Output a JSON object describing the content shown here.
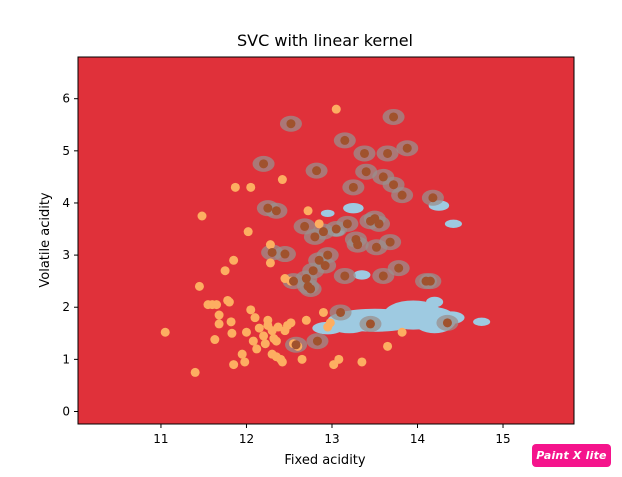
{
  "chart_data": {
    "type": "scatter",
    "title": "SVC with linear kernel",
    "xlabel": "Fixed acidity",
    "ylabel": "Volatile acidity",
    "xlim": [
      10.03,
      15.83
    ],
    "ylim": [
      -0.24,
      6.8
    ],
    "xticks": [
      "11",
      "12",
      "13",
      "14",
      "15"
    ],
    "yticks": [
      "0",
      "1",
      "2",
      "3",
      "4",
      "5",
      "6"
    ],
    "grid": false,
    "colors": {
      "background_region": "#e0313a",
      "light_blue_region": "#9ecae1",
      "brown_points": "#a0522d",
      "orange_points": "#fdae61"
    },
    "series": [
      {
        "color": "#fdae61",
        "points": [
          [
            11.05,
            1.52
          ],
          [
            11.4,
            0.75
          ],
          [
            11.45,
            2.4
          ],
          [
            11.48,
            3.75
          ],
          [
            11.55,
            2.05
          ],
          [
            11.6,
            2.05
          ],
          [
            11.63,
            1.38
          ],
          [
            11.65,
            2.05
          ],
          [
            11.68,
            1.85
          ],
          [
            11.68,
            1.68
          ],
          [
            11.75,
            2.7
          ],
          [
            11.78,
            2.13
          ],
          [
            11.8,
            2.1
          ],
          [
            11.82,
            1.72
          ],
          [
            11.83,
            1.5
          ],
          [
            11.85,
            0.9
          ],
          [
            11.85,
            2.9
          ],
          [
            11.87,
            4.3
          ],
          [
            11.95,
            1.1
          ],
          [
            11.98,
            0.95
          ],
          [
            12.0,
            1.52
          ],
          [
            12.02,
            3.45
          ],
          [
            12.05,
            1.95
          ],
          [
            12.05,
            4.3
          ],
          [
            12.08,
            1.35
          ],
          [
            12.1,
            1.8
          ],
          [
            12.12,
            1.2
          ],
          [
            12.15,
            1.6
          ],
          [
            12.2,
            1.45
          ],
          [
            12.22,
            1.3
          ],
          [
            12.25,
            1.75
          ],
          [
            12.25,
            1.65
          ],
          [
            12.28,
            2.85
          ],
          [
            12.28,
            3.2
          ],
          [
            12.3,
            1.1
          ],
          [
            12.3,
            1.55
          ],
          [
            12.32,
            1.4
          ],
          [
            12.35,
            1.35
          ],
          [
            12.35,
            1.05
          ],
          [
            12.37,
            1.62
          ],
          [
            12.4,
            1.0
          ],
          [
            12.42,
            0.95
          ],
          [
            12.42,
            4.45
          ],
          [
            12.45,
            1.55
          ],
          [
            12.45,
            2.55
          ],
          [
            12.48,
            1.65
          ],
          [
            12.52,
            2.5
          ],
          [
            12.52,
            1.7
          ],
          [
            12.55,
            1.3
          ],
          [
            12.6,
            1.25
          ],
          [
            12.65,
            1.0
          ],
          [
            12.7,
            1.75
          ],
          [
            12.72,
            3.85
          ],
          [
            12.85,
            3.6
          ],
          [
            12.9,
            1.9
          ],
          [
            12.95,
            1.62
          ],
          [
            12.98,
            1.7
          ],
          [
            13.02,
            0.9
          ],
          [
            13.05,
            5.8
          ],
          [
            13.08,
            1.0
          ],
          [
            13.35,
            0.95
          ],
          [
            13.65,
            1.25
          ],
          [
            13.82,
            1.52
          ]
        ]
      },
      {
        "color": "#a0522d",
        "points": [
          [
            12.2,
            4.75
          ],
          [
            12.25,
            3.9
          ],
          [
            12.3,
            3.05
          ],
          [
            12.35,
            3.85
          ],
          [
            12.45,
            3.02
          ],
          [
            12.52,
            5.52
          ],
          [
            12.55,
            2.5
          ],
          [
            12.58,
            1.28
          ],
          [
            12.68,
            3.55
          ],
          [
            12.7,
            2.55
          ],
          [
            12.72,
            2.4
          ],
          [
            12.75,
            2.35
          ],
          [
            12.78,
            2.7
          ],
          [
            12.8,
            3.35
          ],
          [
            12.82,
            4.62
          ],
          [
            12.83,
            1.35
          ],
          [
            12.85,
            2.9
          ],
          [
            12.9,
            3.45
          ],
          [
            12.92,
            2.8
          ],
          [
            12.95,
            3.0
          ],
          [
            13.05,
            3.5
          ],
          [
            13.1,
            1.9
          ],
          [
            13.15,
            5.2
          ],
          [
            13.15,
            2.6
          ],
          [
            13.18,
            3.6
          ],
          [
            13.25,
            4.3
          ],
          [
            13.28,
            3.3
          ],
          [
            13.3,
            3.2
          ],
          [
            13.38,
            4.95
          ],
          [
            13.4,
            4.6
          ],
          [
            13.45,
            3.65
          ],
          [
            13.45,
            1.68
          ],
          [
            13.5,
            3.7
          ],
          [
            13.52,
            3.15
          ],
          [
            13.55,
            3.6
          ],
          [
            13.6,
            4.5
          ],
          [
            13.6,
            2.6
          ],
          [
            13.65,
            4.95
          ],
          [
            13.68,
            3.25
          ],
          [
            13.72,
            5.65
          ],
          [
            13.72,
            4.35
          ],
          [
            13.78,
            2.75
          ],
          [
            13.82,
            4.15
          ],
          [
            13.88,
            5.05
          ],
          [
            14.15,
            2.5
          ],
          [
            14.18,
            4.1
          ],
          [
            14.35,
            1.7
          ],
          [
            14.1,
            2.5
          ]
        ]
      }
    ]
  },
  "watermark": "Paint X lite"
}
